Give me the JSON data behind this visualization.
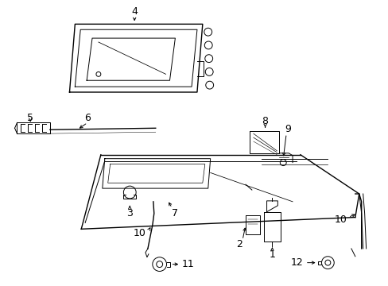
{
  "background": "#ffffff",
  "figsize": [
    4.89,
    3.6
  ],
  "dpi": 100,
  "lw": 0.7,
  "color": "black"
}
